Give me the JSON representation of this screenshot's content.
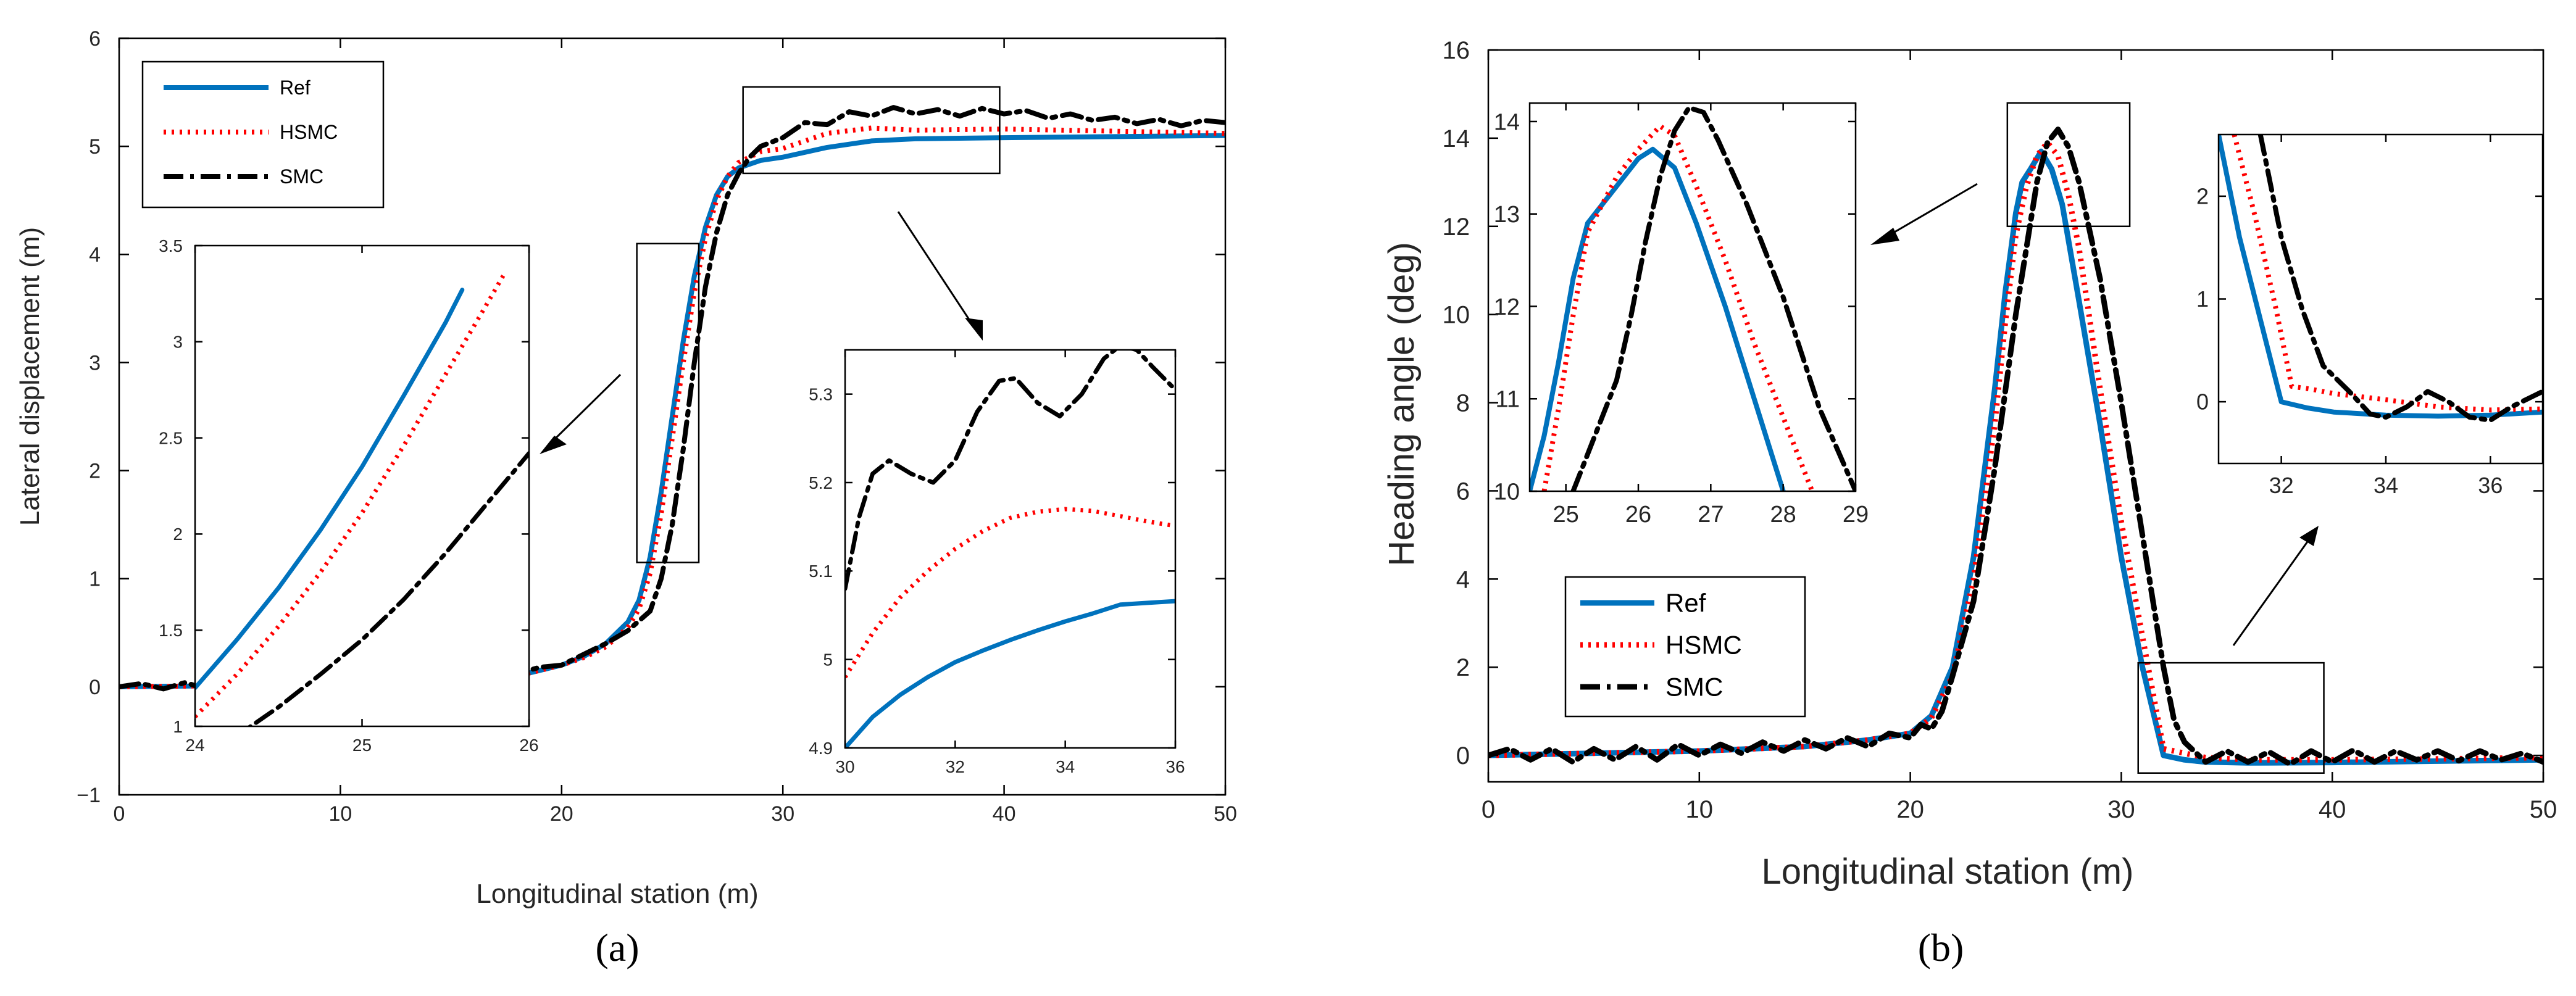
{
  "figure": {
    "panel_labels": [
      "(a)",
      "(b)"
    ]
  },
  "styles": {
    "Ref": {
      "color": "#0072BD",
      "dash": "solid"
    },
    "HSMC": {
      "color": "#FF0000",
      "dash": "dotted"
    },
    "SMC": {
      "color": "#000000",
      "dash": "dashdot"
    }
  },
  "chart_data": [
    {
      "id": "a_main",
      "type": "line",
      "title": "",
      "xlabel": "Longitudinal station (m)",
      "ylabel": "Lateral displacement (m)",
      "xlim": [
        0,
        50
      ],
      "ylim": [
        -1,
        6
      ],
      "xticks": [
        0,
        10,
        20,
        30,
        40,
        50
      ],
      "yticks": [
        -1,
        0,
        1,
        2,
        3,
        4,
        5,
        6
      ],
      "ytick_labels": [
        "−1",
        "0",
        "1",
        "2",
        "3",
        "4",
        "5",
        "6"
      ],
      "legend": [
        "Ref",
        "HSMC",
        "SMC"
      ],
      "legend_position": "top-left",
      "series": [
        {
          "name": "Ref",
          "x": [
            0,
            5,
            10,
            15,
            18,
            20,
            21,
            22,
            23,
            23.5,
            24,
            24.5,
            25,
            25.5,
            26,
            26.5,
            27,
            27.5,
            28,
            29,
            30,
            32,
            34,
            36,
            40,
            45,
            50
          ],
          "y": [
            0,
            0.01,
            0.02,
            0.04,
            0.1,
            0.2,
            0.28,
            0.4,
            0.6,
            0.8,
            1.2,
            1.8,
            2.5,
            3.2,
            3.8,
            4.25,
            4.55,
            4.72,
            4.8,
            4.87,
            4.9,
            4.99,
            5.05,
            5.07,
            5.08,
            5.09,
            5.1
          ]
        },
        {
          "name": "HSMC",
          "x": [
            0,
            5,
            10,
            15,
            18,
            20,
            21,
            22,
            23,
            23.5,
            24,
            24.5,
            25,
            25.5,
            26,
            26.5,
            27,
            27.5,
            28,
            29,
            30,
            32,
            34,
            36,
            40,
            45,
            50
          ],
          "y": [
            0,
            0.01,
            0.02,
            0.04,
            0.1,
            0.2,
            0.27,
            0.37,
            0.55,
            0.72,
            1.05,
            1.6,
            2.3,
            3.0,
            3.65,
            4.15,
            4.5,
            4.72,
            4.85,
            4.95,
            4.98,
            5.12,
            5.17,
            5.15,
            5.16,
            5.14,
            5.12
          ]
        },
        {
          "name": "SMC",
          "x": [
            0,
            1,
            2,
            3,
            4,
            5,
            6,
            7,
            8,
            9,
            10,
            11,
            12,
            13,
            14,
            15,
            16,
            17,
            18,
            19,
            20,
            21,
            22,
            23,
            24,
            24.5,
            25,
            25.5,
            26,
            26.5,
            27,
            27.5,
            28,
            28.5,
            29,
            30,
            31,
            32,
            33,
            34,
            35,
            36,
            37,
            38,
            39,
            40,
            41,
            42,
            43,
            44,
            45,
            46,
            47,
            48,
            49,
            50
          ],
          "y": [
            0,
            0.03,
            -0.02,
            0.04,
            -0.03,
            0.05,
            -0.02,
            0.05,
            -0.03,
            0.06,
            0.0,
            0.06,
            -0.01,
            0.07,
            0.01,
            0.07,
            0.03,
            0.1,
            0.12,
            0.18,
            0.2,
            0.3,
            0.4,
            0.52,
            0.7,
            1.0,
            1.5,
            2.2,
            3.0,
            3.7,
            4.2,
            4.55,
            4.75,
            4.9,
            5.0,
            5.08,
            5.22,
            5.2,
            5.32,
            5.28,
            5.36,
            5.3,
            5.34,
            5.28,
            5.35,
            5.3,
            5.33,
            5.26,
            5.3,
            5.24,
            5.27,
            5.21,
            5.25,
            5.19,
            5.24,
            5.22
          ]
        }
      ],
      "annotation_boxes": [
        {
          "x": [
            23.4,
            26.2
          ],
          "y": [
            1.15,
            4.1
          ]
        },
        {
          "x": [
            28.2,
            39.8
          ],
          "y": [
            4.75,
            5.55
          ]
        }
      ]
    },
    {
      "id": "a_inset_left",
      "type": "line",
      "xlim": [
        24,
        26
      ],
      "ylim": [
        1,
        3.5
      ],
      "xticks": [
        24,
        25,
        26
      ],
      "yticks": [
        1,
        1.5,
        2,
        2.5,
        3,
        3.5
      ],
      "series": [
        {
          "name": "Ref",
          "x": [
            24,
            24.25,
            24.5,
            24.75,
            25,
            25.25,
            25.5,
            25.6
          ],
          "y": [
            1.2,
            1.45,
            1.72,
            2.02,
            2.35,
            2.72,
            3.1,
            3.27
          ]
        },
        {
          "name": "HSMC",
          "x": [
            24,
            24.25,
            24.5,
            24.75,
            25,
            25.25,
            25.5,
            25.75,
            25.85
          ],
          "y": [
            1.05,
            1.27,
            1.52,
            1.8,
            2.11,
            2.46,
            2.83,
            3.2,
            3.35
          ]
        },
        {
          "name": "SMC",
          "x": [
            24,
            24.25,
            24.5,
            24.75,
            25,
            25.25,
            25.5,
            25.75,
            26
          ],
          "y": [
            0.8,
            0.95,
            1.1,
            1.27,
            1.45,
            1.66,
            1.9,
            2.16,
            2.42
          ]
        }
      ]
    },
    {
      "id": "a_inset_right",
      "type": "line",
      "xlim": [
        30,
        36
      ],
      "ylim": [
        4.9,
        5.35
      ],
      "xticks": [
        30,
        32,
        34,
        36
      ],
      "yticks": [
        4.9,
        5,
        5.1,
        5.2,
        5.3
      ],
      "series": [
        {
          "name": "Ref",
          "x": [
            30,
            30.5,
            31,
            31.5,
            32,
            32.5,
            33,
            33.5,
            34,
            34.5,
            35,
            35.5,
            36
          ],
          "y": [
            4.9,
            4.935,
            4.96,
            4.98,
            4.997,
            5.01,
            5.022,
            5.033,
            5.043,
            5.052,
            5.062,
            5.064,
            5.066
          ]
        },
        {
          "name": "HSMC",
          "x": [
            30,
            30.5,
            31,
            31.5,
            32,
            32.5,
            33,
            33.5,
            34,
            34.5,
            35,
            35.5,
            36
          ],
          "y": [
            4.98,
            5.03,
            5.07,
            5.1,
            5.125,
            5.145,
            5.16,
            5.167,
            5.17,
            5.168,
            5.162,
            5.156,
            5.151
          ]
        },
        {
          "name": "SMC",
          "x": [
            30,
            30.25,
            30.5,
            30.8,
            31.2,
            31.6,
            32,
            32.4,
            32.8,
            33.1,
            33.5,
            33.9,
            34.3,
            34.7,
            35,
            35.3,
            35.6,
            36
          ],
          "y": [
            5.08,
            5.16,
            5.21,
            5.225,
            5.21,
            5.2,
            5.225,
            5.28,
            5.315,
            5.318,
            5.29,
            5.275,
            5.3,
            5.34,
            5.355,
            5.35,
            5.33,
            5.305
          ]
        }
      ]
    },
    {
      "id": "b_main",
      "type": "line",
      "title": "",
      "xlabel": "Longitudinal station (m)",
      "ylabel": "Heading angle (deg)",
      "xlim": [
        0,
        50
      ],
      "ylim": [
        -0.6,
        16
      ],
      "xticks": [
        0,
        10,
        20,
        30,
        40,
        50
      ],
      "yticks": [
        0,
        2,
        4,
        6,
        8,
        10,
        12,
        14,
        16
      ],
      "legend": [
        "Ref",
        "HSMC",
        "SMC"
      ],
      "legend_position": "lower-left",
      "series": [
        {
          "name": "Ref",
          "x": [
            0,
            5,
            10,
            15,
            18,
            20,
            21,
            22,
            23,
            24,
            24.5,
            25,
            25.3,
            25.7,
            26.2,
            26.7,
            27.2,
            28,
            29,
            30,
            31,
            32,
            33,
            34,
            36,
            40,
            45,
            50
          ],
          "y": [
            0,
            0.05,
            0.1,
            0.2,
            0.35,
            0.5,
            0.9,
            2.0,
            4.5,
            8.3,
            10.5,
            12.3,
            13.0,
            13.3,
            13.7,
            13.3,
            12.5,
            10.3,
            7.5,
            4.5,
            2.0,
            0.0,
            -0.1,
            -0.15,
            -0.17,
            -0.16,
            -0.13,
            -0.1
          ]
        },
        {
          "name": "HSMC",
          "x": [
            0,
            5,
            10,
            15,
            18,
            20,
            21,
            22,
            23,
            24,
            24.5,
            25,
            25.5,
            26,
            26.5,
            27,
            27.5,
            28,
            29,
            30,
            31,
            32,
            33,
            34,
            36,
            40,
            45,
            50
          ],
          "y": [
            0,
            0.05,
            0.1,
            0.2,
            0.35,
            0.5,
            0.85,
            1.8,
            4.0,
            7.5,
            9.8,
            11.8,
            12.9,
            13.6,
            13.9,
            13.6,
            12.7,
            11.5,
            8.3,
            5.3,
            2.7,
            0.15,
            0.05,
            -0.05,
            -0.1,
            -0.1,
            -0.08,
            -0.05
          ]
        },
        {
          "name": "SMC",
          "x": [
            0,
            1,
            2,
            3,
            4,
            5,
            6,
            7,
            8,
            9,
            10,
            11,
            12,
            13,
            14,
            15,
            16,
            17,
            18,
            19,
            20,
            20.5,
            21,
            21.5,
            22,
            23,
            24,
            25,
            25.5,
            26,
            26.5,
            27,
            27.5,
            28,
            29,
            30,
            31,
            32,
            32.5,
            33,
            34,
            35,
            36,
            37,
            38,
            39,
            40,
            41,
            42,
            43,
            44,
            45,
            46,
            47,
            48,
            49,
            50
          ],
          "y": [
            0,
            0.15,
            -0.1,
            0.15,
            -0.15,
            0.15,
            -0.1,
            0.2,
            -0.1,
            0.25,
            0.0,
            0.25,
            0.05,
            0.3,
            0.1,
            0.35,
            0.15,
            0.4,
            0.2,
            0.5,
            0.4,
            0.7,
            0.6,
            1.0,
            1.8,
            3.5,
            6.5,
            10.0,
            11.5,
            13.0,
            13.9,
            14.2,
            13.8,
            13.0,
            10.8,
            8.0,
            5.0,
            2.0,
            0.8,
            0.3,
            -0.15,
            0.1,
            -0.15,
            0.08,
            -0.2,
            0.1,
            -0.15,
            0.12,
            -0.15,
            0.1,
            -0.1,
            0.1,
            -0.12,
            0.1,
            -0.1,
            0.05,
            -0.15
          ]
        }
      ],
      "annotation_boxes": [
        {
          "x": [
            24.6,
            30.4
          ],
          "y": [
            12.0,
            14.8
          ]
        },
        {
          "x": [
            30.8,
            39.6
          ],
          "y": [
            -0.4,
            2.1
          ]
        }
      ]
    },
    {
      "id": "b_inset_left",
      "type": "line",
      "xlim": [
        24.5,
        29
      ],
      "ylim": [
        10,
        14.2
      ],
      "xticks": [
        25,
        26,
        27,
        28,
        29
      ],
      "yticks": [
        10,
        11,
        12,
        13,
        14
      ],
      "series": [
        {
          "name": "Ref",
          "x": [
            24.5,
            24.7,
            24.9,
            25.1,
            25.3,
            25.5,
            25.7,
            26.0,
            26.2,
            26.5,
            26.8,
            27.2,
            27.6,
            28.0
          ],
          "y": [
            10.0,
            10.6,
            11.4,
            12.3,
            12.9,
            13.1,
            13.3,
            13.6,
            13.7,
            13.5,
            12.9,
            12.0,
            11.0,
            10.0
          ]
        },
        {
          "name": "HSMC",
          "x": [
            24.7,
            24.9,
            25.1,
            25.3,
            25.5,
            25.7,
            26.0,
            26.3,
            26.5,
            26.8,
            27.2,
            27.6,
            28.0,
            28.4
          ],
          "y": [
            10.0,
            10.9,
            11.9,
            12.8,
            13.1,
            13.4,
            13.7,
            13.95,
            13.85,
            13.3,
            12.5,
            11.6,
            10.8,
            10.0
          ]
        },
        {
          "name": "SMC",
          "x": [
            25.1,
            25.3,
            25.5,
            25.7,
            25.9,
            26.1,
            26.3,
            26.5,
            26.7,
            26.9,
            27.1,
            27.5,
            28.0,
            28.5,
            29.0
          ],
          "y": [
            10.0,
            10.4,
            10.8,
            11.2,
            11.9,
            12.7,
            13.4,
            13.9,
            14.15,
            14.1,
            13.8,
            13.1,
            12.1,
            10.9,
            10.0
          ]
        }
      ]
    },
    {
      "id": "b_inset_right",
      "type": "line",
      "xlim": [
        30.8,
        37
      ],
      "ylim": [
        -0.6,
        2.6
      ],
      "xticks": [
        32,
        34,
        36
      ],
      "yticks": [
        0,
        1,
        2
      ],
      "series": [
        {
          "name": "Ref",
          "x": [
            30.8,
            31.2,
            31.6,
            32.0,
            32.5,
            33,
            34,
            35,
            36,
            37
          ],
          "y": [
            2.6,
            1.6,
            0.8,
            0.0,
            -0.06,
            -0.1,
            -0.13,
            -0.14,
            -0.13,
            -0.1
          ]
        },
        {
          "name": "HSMC",
          "x": [
            31.1,
            31.5,
            31.9,
            32.2,
            32.6,
            33,
            34,
            35,
            36,
            37
          ],
          "y": [
            2.6,
            1.8,
            0.9,
            0.15,
            0.12,
            0.08,
            0.02,
            -0.05,
            -0.08,
            -0.07
          ]
        },
        {
          "name": "SMC",
          "x": [
            31.6,
            32.0,
            32.4,
            32.8,
            33.0,
            33.3,
            33.7,
            34.0,
            34.4,
            34.8,
            35.2,
            35.6,
            36.0,
            36.4,
            36.8,
            37
          ],
          "y": [
            2.6,
            1.6,
            0.9,
            0.35,
            0.25,
            0.1,
            -0.12,
            -0.15,
            -0.05,
            0.1,
            0.0,
            -0.15,
            -0.18,
            -0.05,
            0.05,
            0.1
          ]
        }
      ]
    }
  ]
}
